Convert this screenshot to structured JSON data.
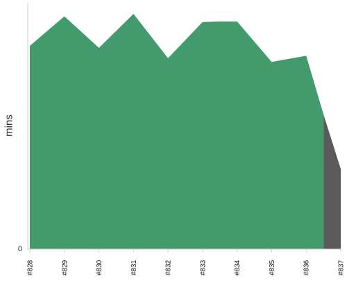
{
  "chart_data": {
    "type": "area",
    "ylabel": "mins",
    "xlabel": "",
    "title": "",
    "y_tick_labels": [
      "0"
    ],
    "categories": [
      "#828",
      "#829",
      "#830",
      "#831",
      "#832",
      "#833",
      "#834",
      "#835",
      "#836",
      "#837"
    ],
    "ylim": [
      0,
      100
    ],
    "series": [
      {
        "color": "#439a6c",
        "points": [
          {
            "x": 0,
            "y": 82.5
          },
          {
            "x": 1,
            "y": 94.5
          },
          {
            "x": 2,
            "y": 81.7
          },
          {
            "x": 3,
            "y": 95.5
          },
          {
            "x": 4,
            "y": 77.5
          },
          {
            "x": 5,
            "y": 92.2
          },
          {
            "x": 5.5,
            "y": 92.4
          },
          {
            "x": 6,
            "y": 92.4
          },
          {
            "x": 7,
            "y": 76.0
          },
          {
            "x": 8,
            "y": 78.5
          },
          {
            "x": 8.5,
            "y": 54.7
          }
        ]
      },
      {
        "color": "#5a5a5a",
        "points": [
          {
            "x": 8.5,
            "y": 54.7
          },
          {
            "x": 9,
            "y": 32.5
          }
        ]
      }
    ],
    "grid": false,
    "legend": "none"
  }
}
